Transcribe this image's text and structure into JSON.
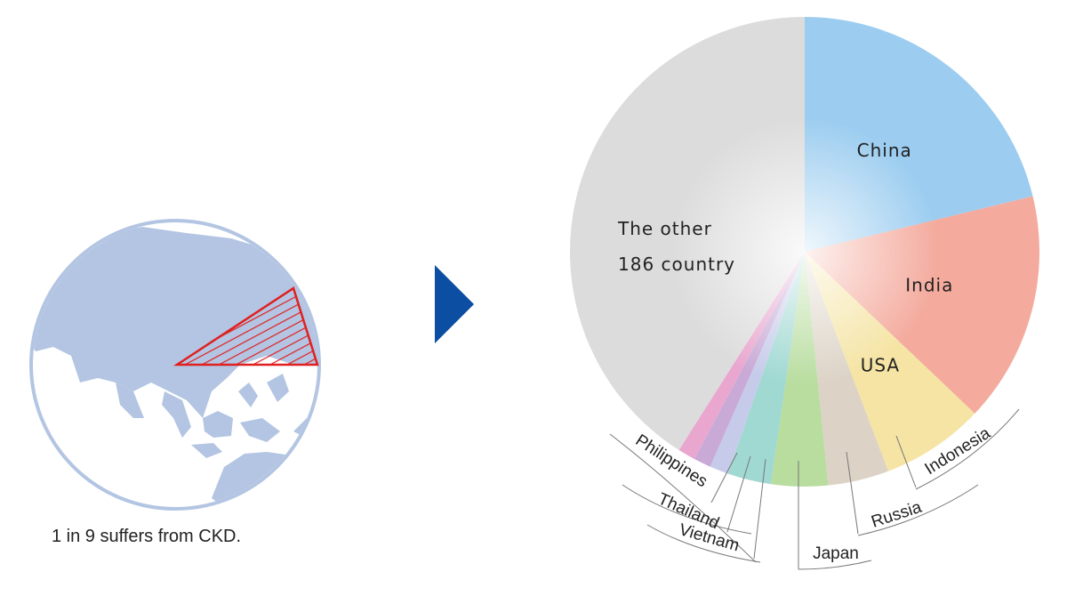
{
  "caption": "1 in 9 suffers from CKD.",
  "globe_icon": "globe-asia-icon",
  "arrow_icon": "play-arrow-icon",
  "colors": {
    "globe": "#b3c5e2",
    "wedge": "#e02020",
    "arrow": "#0c4ea1"
  },
  "chart_data": {
    "type": "pie",
    "legend": "none",
    "slices": [
      {
        "label": "China",
        "value": 21.2,
        "color": "#9ccdf0"
      },
      {
        "label": "India",
        "value": 15.9,
        "color": "#f4ab9e"
      },
      {
        "label": "USA",
        "value": 7.1,
        "color": "#f5e4a4"
      },
      {
        "label": "Indonesia",
        "value": 4.2,
        "color": "#dcd3c6"
      },
      {
        "label": "Russia",
        "value": 3.9,
        "color": "#b8dd9f"
      },
      {
        "label": "Japan",
        "value": 3.0,
        "color": "#a0d8d2"
      },
      {
        "label": "Vietnam",
        "value": 1.3,
        "color": "#c6cbea"
      },
      {
        "label": "Thailand",
        "value": 1.2,
        "color": "#c9aad6"
      },
      {
        "label": "Philippines",
        "value": 1.2,
        "color": "#e9a7cf"
      },
      {
        "label": "The other 186 country",
        "label_lines": [
          "The other",
          "186 country"
        ],
        "value": 41.0,
        "color": "#dcdcdc"
      }
    ]
  }
}
